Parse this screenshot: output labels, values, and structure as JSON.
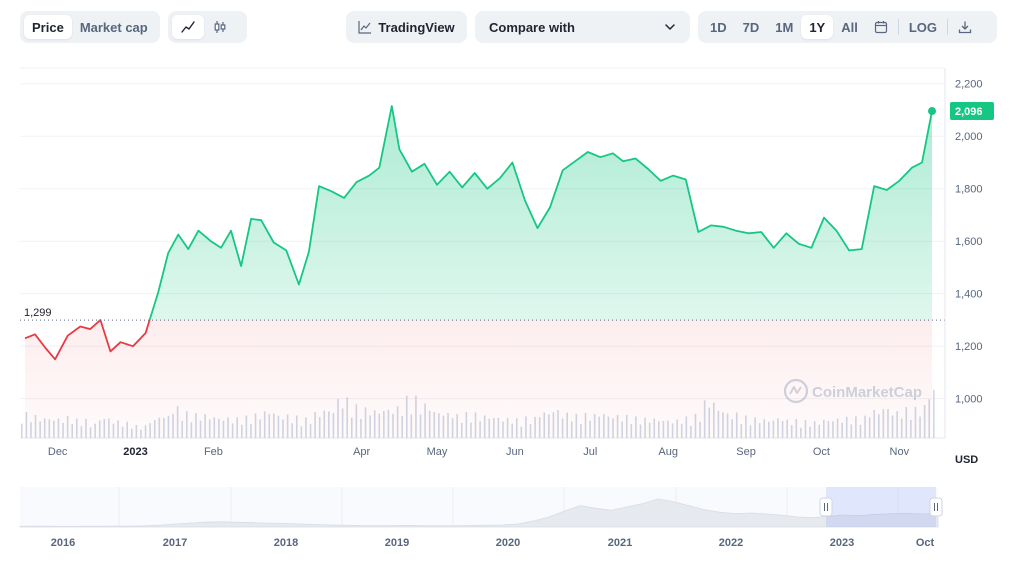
{
  "toolbar": {
    "type_tabs": [
      {
        "label": "Price",
        "active": true
      },
      {
        "label": "Market cap",
        "active": false
      }
    ],
    "view_icons": [
      "line-chart-icon",
      "candlestick-icon"
    ],
    "tradingview_label": "TradingView",
    "compare_label": "Compare with",
    "ranges": [
      {
        "label": "1D",
        "active": false
      },
      {
        "label": "7D",
        "active": false
      },
      {
        "label": "1M",
        "active": false
      },
      {
        "label": "1Y",
        "active": true
      },
      {
        "label": "All",
        "active": false
      }
    ],
    "calendar_icon": "calendar-icon",
    "log_label": "LOG",
    "download_icon": "download-icon"
  },
  "colors": {
    "up": "#16c784",
    "down": "#ea3943",
    "axis_text": "#58667e",
    "grid": "#eff2f5",
    "volume": "#cfd6e4"
  },
  "watermark": "CoinMarketCap",
  "chart_data": {
    "type": "area",
    "currency_label": "USD",
    "reference_price": 1299,
    "reference_label": "1,299",
    "last_price_label": "2,096",
    "x": [
      "2022-11-18",
      "2022-11-22",
      "2022-11-26",
      "2022-11-30",
      "2022-12-05",
      "2022-12-10",
      "2022-12-14",
      "2022-12-18",
      "2022-12-22",
      "2022-12-26",
      "2022-12-31",
      "2023-01-05",
      "2023-01-10",
      "2023-01-14",
      "2023-01-18",
      "2023-01-22",
      "2023-01-26",
      "2023-01-31",
      "2023-02-04",
      "2023-02-08",
      "2023-02-12",
      "2023-02-16",
      "2023-02-20",
      "2023-02-25",
      "2023-03-02",
      "2023-03-07",
      "2023-03-11",
      "2023-03-15",
      "2023-03-20",
      "2023-03-25",
      "2023-03-30",
      "2023-04-04",
      "2023-04-08",
      "2023-04-13",
      "2023-04-16",
      "2023-04-21",
      "2023-04-26",
      "2023-05-01",
      "2023-05-06",
      "2023-05-11",
      "2023-05-16",
      "2023-05-21",
      "2023-05-26",
      "2023-05-31",
      "2023-06-05",
      "2023-06-10",
      "2023-06-15",
      "2023-06-20",
      "2023-06-25",
      "2023-06-30",
      "2023-07-05",
      "2023-07-10",
      "2023-07-14",
      "2023-07-19",
      "2023-07-24",
      "2023-07-29",
      "2023-08-03",
      "2023-08-08",
      "2023-08-13",
      "2023-08-18",
      "2023-08-23",
      "2023-08-28",
      "2023-09-02",
      "2023-09-07",
      "2023-09-12",
      "2023-09-17",
      "2023-09-22",
      "2023-09-27",
      "2023-10-02",
      "2023-10-07",
      "2023-10-12",
      "2023-10-17",
      "2023-10-22",
      "2023-10-27",
      "2023-11-01",
      "2023-11-06",
      "2023-11-10",
      "2023-11-14"
    ],
    "price": [
      1230,
      1245,
      1195,
      1150,
      1240,
      1275,
      1265,
      1300,
      1180,
      1215,
      1200,
      1250,
      1405,
      1555,
      1625,
      1570,
      1640,
      1600,
      1575,
      1640,
      1505,
      1685,
      1680,
      1595,
      1565,
      1435,
      1560,
      1810,
      1790,
      1765,
      1825,
      1850,
      1880,
      2115,
      1950,
      1865,
      1895,
      1815,
      1865,
      1805,
      1860,
      1800,
      1840,
      1900,
      1755,
      1650,
      1730,
      1870,
      1905,
      1940,
      1920,
      1935,
      1905,
      1915,
      1875,
      1830,
      1850,
      1835,
      1635,
      1660,
      1655,
      1640,
      1630,
      1635,
      1575,
      1630,
      1590,
      1575,
      1690,
      1640,
      1565,
      1570,
      1810,
      1795,
      1830,
      1880,
      1900,
      2096
    ],
    "x_tick_labels": [
      "Dec",
      "2023",
      "Feb",
      "Apr",
      "May",
      "Jun",
      "Jul",
      "Aug",
      "Sep",
      "Oct",
      "Nov"
    ],
    "y_tick_labels": [
      "1,000",
      "1,200",
      "1,400",
      "1,600",
      "1,800",
      "2,000",
      "2,200"
    ],
    "y_ticks": [
      1000,
      1200,
      1400,
      1600,
      1800,
      2000,
      2200
    ],
    "ylim": [
      850,
      2260
    ],
    "volume": [
      60,
      55,
      50,
      48,
      52,
      45,
      35,
      50,
      42,
      38,
      30,
      45,
      55,
      75,
      62,
      58,
      54,
      50,
      48,
      52,
      58,
      66,
      56,
      52,
      48,
      62,
      70,
      95,
      78,
      72,
      68,
      72,
      76,
      98,
      82,
      66,
      62,
      56,
      60,
      55,
      52,
      48,
      46,
      50,
      64,
      70,
      60,
      56,
      58,
      62,
      56,
      54,
      50,
      48,
      46,
      44,
      50,
      56,
      90,
      72,
      60,
      52,
      48,
      46,
      50,
      44,
      42,
      40,
      46,
      48,
      50,
      52,
      68,
      75,
      65,
      72,
      78,
      120
    ],
    "grid": true,
    "navigator": {
      "type": "area",
      "x_tick_labels": [
        "2016",
        "2017",
        "2018",
        "2019",
        "2020",
        "2021",
        "2022",
        "2023",
        "Oct"
      ],
      "price": [
        10,
        12,
        10,
        9,
        10,
        11,
        12,
        14,
        18,
        28,
        45,
        60,
        72,
        78,
        70,
        65,
        58,
        52,
        45,
        38,
        30,
        26,
        22,
        20,
        22,
        24,
        20,
        18,
        21,
        24,
        26,
        30,
        45,
        90,
        150,
        240,
        320,
        280,
        250,
        300,
        350,
        420,
        380,
        320,
        260,
        220,
        200,
        210,
        195,
        175,
        150,
        140,
        160,
        180,
        170,
        190,
        200,
        205,
        195,
        210
      ],
      "selection": "2022-11 to 2023-11"
    }
  }
}
